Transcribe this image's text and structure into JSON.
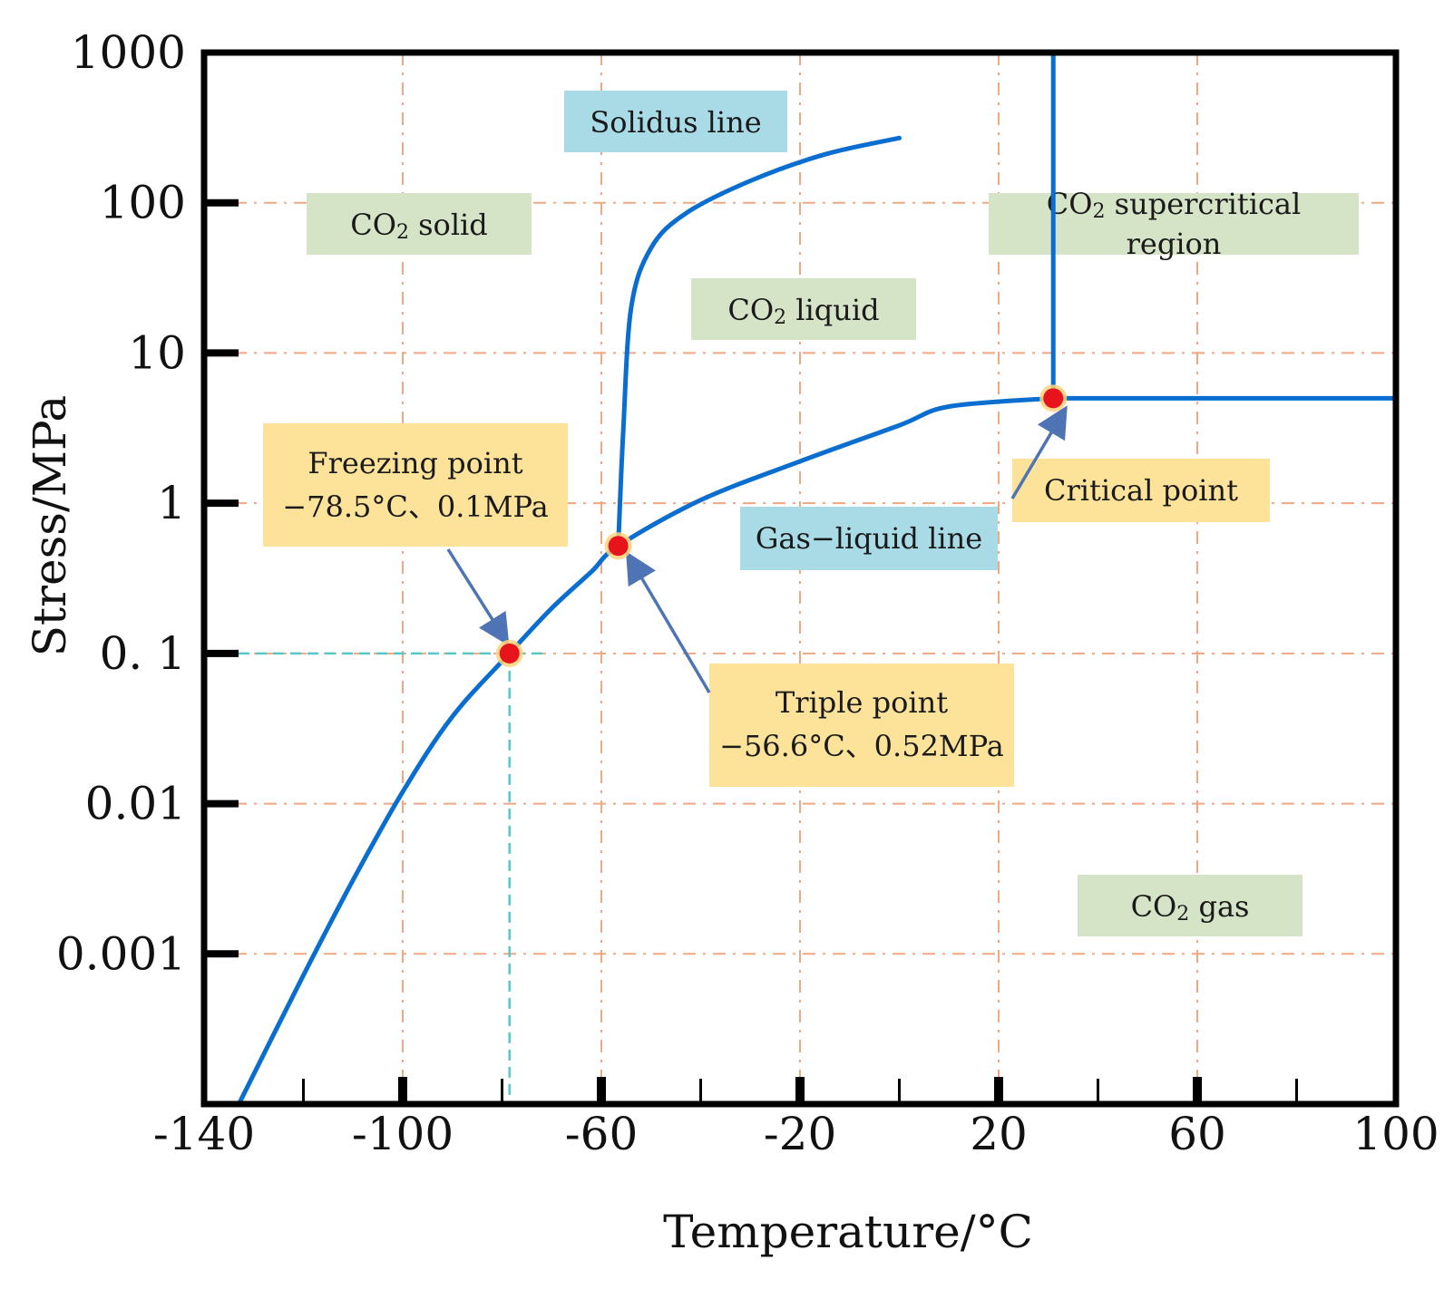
{
  "chart_data": {
    "type": "line",
    "title": "",
    "xlabel": "Temperature/°C",
    "ylabel": "Stress/MPa",
    "x_scale": "linear",
    "y_scale": "log",
    "xlim": [
      -140,
      100
    ],
    "ylim": [
      0.0001,
      1000
    ],
    "grid": true,
    "x_ticks": [
      -140,
      -100,
      -60,
      -20,
      20,
      60,
      100
    ],
    "x_tick_labels": [
      "-140",
      "-100",
      "-60",
      "-20",
      "20",
      "60",
      "100"
    ],
    "y_ticks": [
      0.001,
      0.01,
      0.1,
      1,
      10,
      100,
      1000
    ],
    "y_tick_labels": [
      "0.001",
      "0.01",
      "0. 1",
      "1",
      "10",
      "100",
      "1000"
    ],
    "series": [
      {
        "name": "Gas-liquid / sublimation curve",
        "points": [
          [
            -133,
            0.0001
          ],
          [
            -120,
            0.00072
          ],
          [
            -110,
            0.0031
          ],
          [
            -100,
            0.012
          ],
          [
            -90,
            0.038
          ],
          [
            -78.5,
            0.1
          ],
          [
            -70,
            0.2
          ],
          [
            -62,
            0.35
          ],
          [
            -56.6,
            0.52
          ],
          [
            -40,
            1.05
          ],
          [
            -20,
            1.9
          ],
          [
            0,
            3.3
          ],
          [
            10,
            4.4
          ],
          [
            31,
            5
          ]
        ]
      },
      {
        "name": "Solidus line",
        "points": [
          [
            -56.6,
            0.52
          ],
          [
            -55.6,
            3
          ],
          [
            -54,
            20
          ],
          [
            -50,
            50
          ],
          [
            -43,
            85
          ],
          [
            -30,
            140
          ],
          [
            -15,
            210
          ],
          [
            0,
            270
          ]
        ]
      },
      {
        "name": "Critical temperature boundary",
        "points": [
          [
            31,
            5
          ],
          [
            31,
            1000
          ]
        ]
      },
      {
        "name": "Critical pressure boundary",
        "points": [
          [
            31,
            5
          ],
          [
            100,
            5
          ]
        ]
      }
    ],
    "points": [
      {
        "name": "Freezing point",
        "x": -78.5,
        "y": 0.1
      },
      {
        "name": "Triple point",
        "x": -56.6,
        "y": 0.52
      },
      {
        "name": "Critical point",
        "x": 31,
        "y": 5
      }
    ],
    "annotations": [
      {
        "id": "solidus",
        "text": "Solidus line",
        "color": "#a8dbe6"
      },
      {
        "id": "solid",
        "text": "CO2 solid",
        "color": "#d5e3c6"
      },
      {
        "id": "supercritical",
        "text": "CO2 supercritical region",
        "color": "#d5e3c6"
      },
      {
        "id": "liquid",
        "text": "CO2 liquid",
        "color": "#d5e3c6"
      },
      {
        "id": "freezing",
        "text": "Freezing point",
        "subtext": "−78.5°C、0.1MPa",
        "color": "#fde29a"
      },
      {
        "id": "critical",
        "text": "Critical point",
        "color": "#fde29a"
      },
      {
        "id": "gasliquid",
        "text": "Gas−liquid line",
        "color": "#a8dbe6"
      },
      {
        "id": "triple",
        "text": "Triple point",
        "subtext": "−56.6°C、0.52MPa",
        "color": "#fde29a"
      },
      {
        "id": "gas",
        "text": "CO2 gas",
        "color": "#d5e3c6"
      }
    ],
    "labels": {
      "co2_prefix": "CO",
      "subscript": "2",
      "solid_suffix": " solid",
      "liquid_suffix": " liquid",
      "gas_suffix": " gas",
      "supercritical_line1": " supercritical",
      "supercritical_line2": "region"
    },
    "colors": {
      "curve": "#0a6ed1",
      "grid": "#f0a882",
      "point": "#e8141b",
      "point_halo": "#ffd27a",
      "arrow": "#4f74b5",
      "guide": "#55c8c8"
    }
  }
}
